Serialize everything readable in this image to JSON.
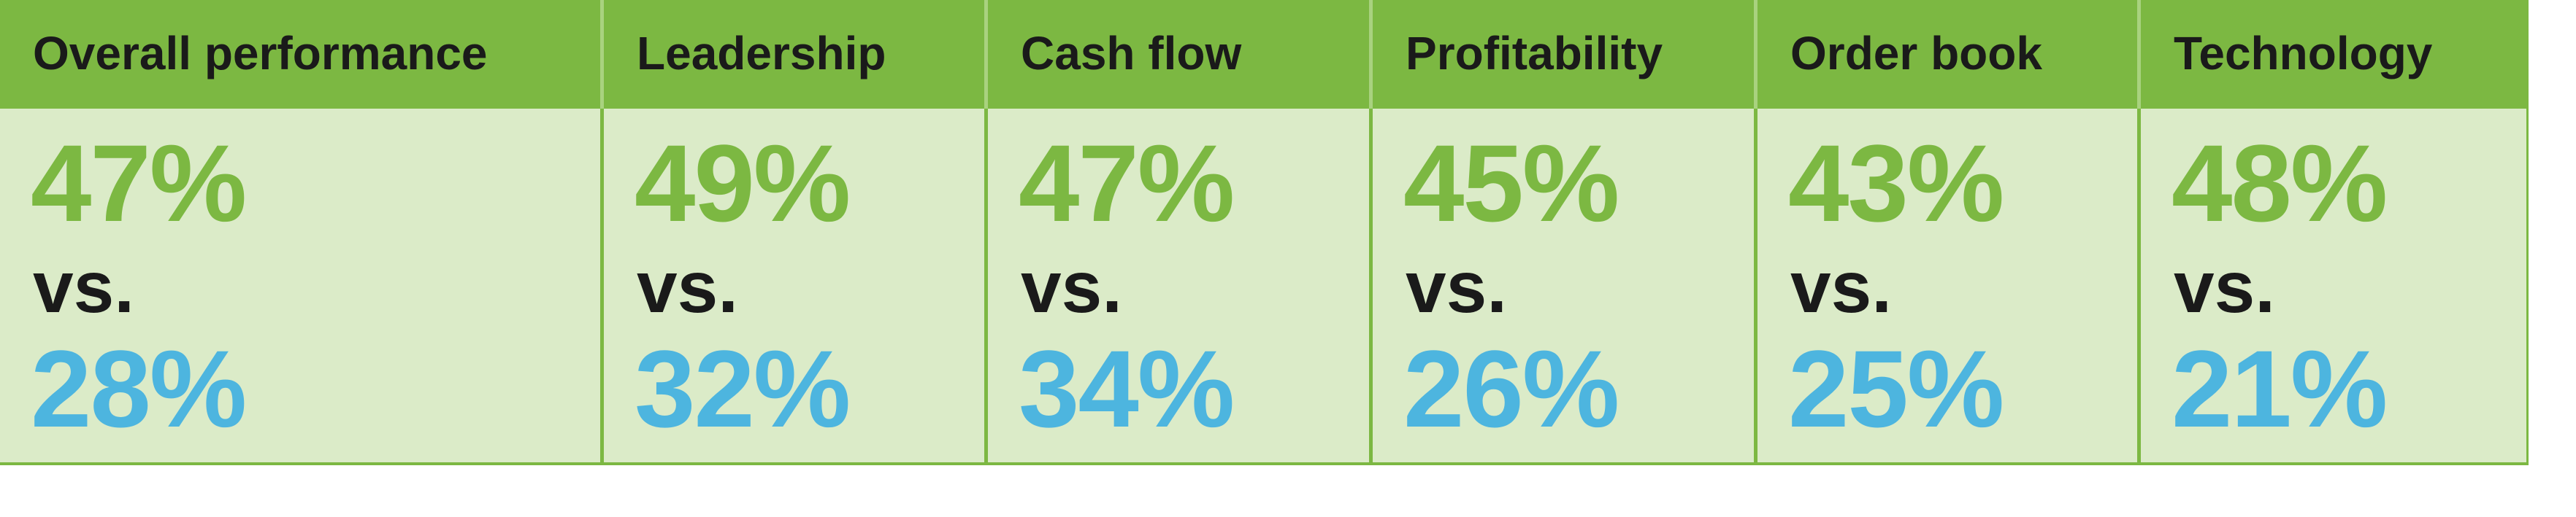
{
  "colors": {
    "header_bg": "#7cb842",
    "cell_bg": "#dbebc8",
    "first_value": "#7cb842",
    "second_value": "#4db5df",
    "text_dark": "#1a1a1a"
  },
  "chart_data": {
    "type": "table",
    "columns": [
      "Overall performance",
      "Leadership",
      "Cash flow",
      "Profitability",
      "Order book",
      "Technology"
    ],
    "rows": [
      [
        "47%",
        "49%",
        "47%",
        "45%",
        "43%",
        "48%"
      ],
      [
        "vs.",
        "vs.",
        "vs.",
        "vs.",
        "vs.",
        "vs."
      ],
      [
        "28%",
        "32%",
        "34%",
        "26%",
        "25%",
        "21%"
      ]
    ],
    "series": [
      {
        "values": [
          47,
          49,
          47,
          45,
          43,
          48
        ]
      },
      {
        "values": [
          28,
          32,
          34,
          26,
          25,
          21
        ]
      }
    ],
    "unit": "%"
  },
  "cells": [
    {
      "header": "Overall performance",
      "first": "47%",
      "vs": "vs.",
      "second": "28%"
    },
    {
      "header": "Leadership",
      "first": "49%",
      "vs": "vs.",
      "second": "32%"
    },
    {
      "header": "Cash flow",
      "first": "47%",
      "vs": "vs.",
      "second": "34%"
    },
    {
      "header": "Profitability",
      "first": "45%",
      "vs": "vs.",
      "second": "26%"
    },
    {
      "header": "Order book",
      "first": "43%",
      "vs": "vs.",
      "second": "25%"
    },
    {
      "header": "Technology",
      "first": "48%",
      "vs": "vs.",
      "second": "21%"
    }
  ]
}
